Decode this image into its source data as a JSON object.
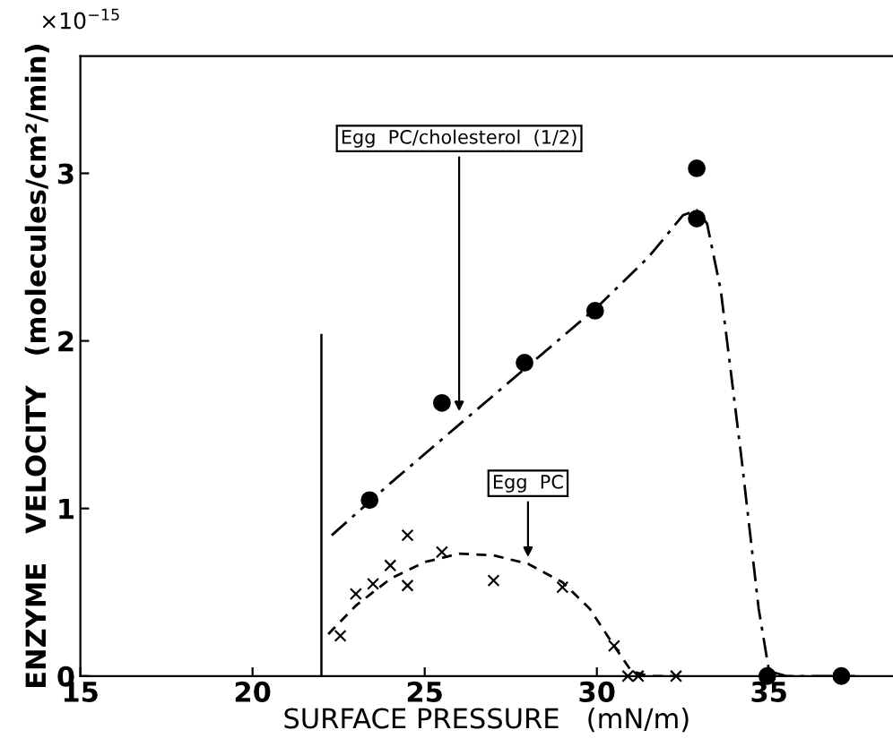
{
  "chart_data": {
    "type": "scatter",
    "xlabel": "SURFACE PRESSURE   (mN/m)",
    "ylabel": "ENZYME   VELOCITY   (molecules/cm²/min)",
    "xlim": [
      15,
      38.6
    ],
    "ylim": [
      0,
      3.7
    ],
    "xticks": [
      15,
      20,
      25,
      30,
      35
    ],
    "yticks": [
      0,
      1,
      2,
      3
    ],
    "grid": false,
    "series": [
      {
        "marker": "circle",
        "color": "#000000",
        "x": [
          23.4,
          25.5,
          27.9,
          29.95,
          32.9,
          32.9,
          34.95,
          37.1
        ],
        "values": [
          1.05,
          1.63,
          1.87,
          2.18,
          2.73,
          3.03,
          0,
          0
        ]
      },
      {
        "marker": "cross",
        "color": "#000000",
        "x": [
          22.55,
          23.0,
          23.5,
          24.0,
          24.5,
          24.5,
          25.5,
          27.0,
          29.0,
          30.5,
          30.9,
          31.2,
          32.3
        ],
        "values": [
          0.24,
          0.49,
          0.55,
          0.66,
          0.84,
          0.54,
          0.74,
          0.57,
          0.53,
          0.18,
          0,
          0,
          0
        ]
      },
      {
        "type": "line",
        "line_style": "dashdot",
        "marker": "none",
        "color": "#000000",
        "x": [
          22.3,
          24,
          26,
          28,
          30,
          31.5,
          32.5,
          32.9,
          33.2,
          33.6,
          34.2,
          34.7,
          35,
          35.5,
          37.5
        ],
        "values": [
          0.84,
          1.15,
          1.5,
          1.85,
          2.2,
          2.5,
          2.75,
          2.78,
          2.7,
          2.3,
          1.3,
          0.4,
          0.03,
          0,
          0
        ]
      },
      {
        "type": "line",
        "line_style": "dashed",
        "marker": "none",
        "color": "#000000",
        "x": [
          22.2,
          23,
          24,
          25,
          26,
          27,
          28,
          29,
          29.8,
          30.5,
          31,
          31.5,
          32.5
        ],
        "values": [
          0.25,
          0.42,
          0.58,
          0.68,
          0.73,
          0.72,
          0.67,
          0.56,
          0.4,
          0.18,
          0.03,
          0,
          0
        ]
      }
    ],
    "ref_lines": [
      {
        "axis": "x",
        "value": 22,
        "color": "#000000",
        "line_style": "solid"
      }
    ],
    "annotations": [
      "×10$^{−15}$",
      {
        "text": "Egg  PC/cholesterol  (1/2)",
        "x": 26,
        "y": 1.55
      },
      {
        "text": "Egg  PC",
        "x": 28,
        "y": 0.68
      }
    ]
  }
}
